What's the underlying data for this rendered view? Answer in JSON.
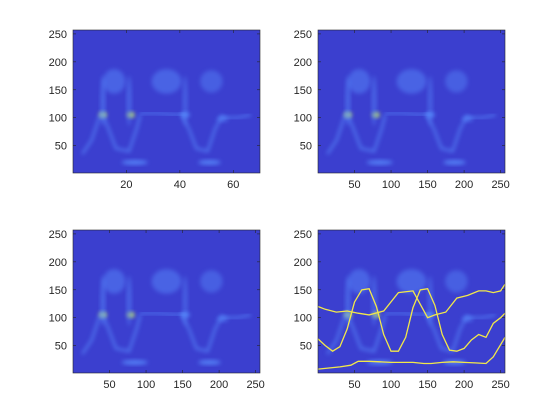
{
  "colors": {
    "background": "#3b3fcf",
    "bright": "#5a90ff",
    "hot": "#c8f060",
    "overlay_line": "#f2e84a",
    "axis": "#262626"
  },
  "chart_data": [
    {
      "type": "heatmap",
      "panel": "top-left",
      "xlim": [
        0,
        70
      ],
      "ylim": [
        1,
        257
      ],
      "xticks": [
        "20",
        "40",
        "60"
      ],
      "yticks": [
        "50",
        "100",
        "150",
        "200",
        "250"
      ],
      "x_extent": 70
    },
    {
      "type": "heatmap",
      "panel": "top-right",
      "xlim": [
        0,
        256
      ],
      "ylim": [
        1,
        257
      ],
      "xticks": [
        "50",
        "100",
        "150",
        "200",
        "250"
      ],
      "yticks": [
        "50",
        "100",
        "150",
        "200",
        "250"
      ],
      "x_extent": 256
    },
    {
      "type": "heatmap",
      "panel": "bottom-left",
      "xlim": [
        0,
        256
      ],
      "ylim": [
        1,
        257
      ],
      "xticks": [
        "50",
        "100",
        "150",
        "200",
        "250"
      ],
      "yticks": [
        "50",
        "100",
        "150",
        "200",
        "250"
      ],
      "x_extent": 256
    },
    {
      "type": "heatmap",
      "panel": "bottom-right",
      "xlim": [
        0,
        256
      ],
      "ylim": [
        1,
        257
      ],
      "xticks": [
        "50",
        "100",
        "150",
        "200",
        "250"
      ],
      "yticks": [
        "50",
        "100",
        "150",
        "200",
        "250"
      ],
      "x_extent": 256,
      "overlay_series": [
        {
          "x": [
            0,
            15,
            30,
            45,
            55,
            70,
            85,
            100,
            115,
            130,
            145,
            155,
            170,
            185,
            200,
            215,
            230,
            240,
            256
          ],
          "y": [
            8,
            10,
            12,
            15,
            22,
            22,
            21,
            20,
            20,
            20,
            18,
            18,
            20,
            21,
            20,
            19,
            18,
            30,
            65
          ]
        },
        {
          "x": [
            0,
            10,
            20,
            30,
            40,
            50,
            60,
            70,
            80,
            90,
            100,
            110,
            120,
            130,
            140,
            150,
            160,
            170,
            180,
            190,
            200,
            210,
            220,
            230,
            240,
            250,
            256
          ],
          "y": [
            62,
            50,
            40,
            48,
            80,
            128,
            150,
            152,
            120,
            70,
            40,
            40,
            65,
            118,
            150,
            152,
            122,
            70,
            42,
            40,
            45,
            60,
            70,
            65,
            90,
            100,
            108
          ]
        },
        {
          "x": [
            0,
            10,
            25,
            40,
            55,
            70,
            90,
            110,
            130,
            150,
            160,
            175,
            190,
            205,
            220,
            230,
            240,
            250,
            256
          ],
          "y": [
            120,
            115,
            110,
            112,
            108,
            105,
            112,
            145,
            148,
            100,
            105,
            110,
            135,
            140,
            148,
            148,
            145,
            148,
            160
          ]
        }
      ]
    }
  ]
}
